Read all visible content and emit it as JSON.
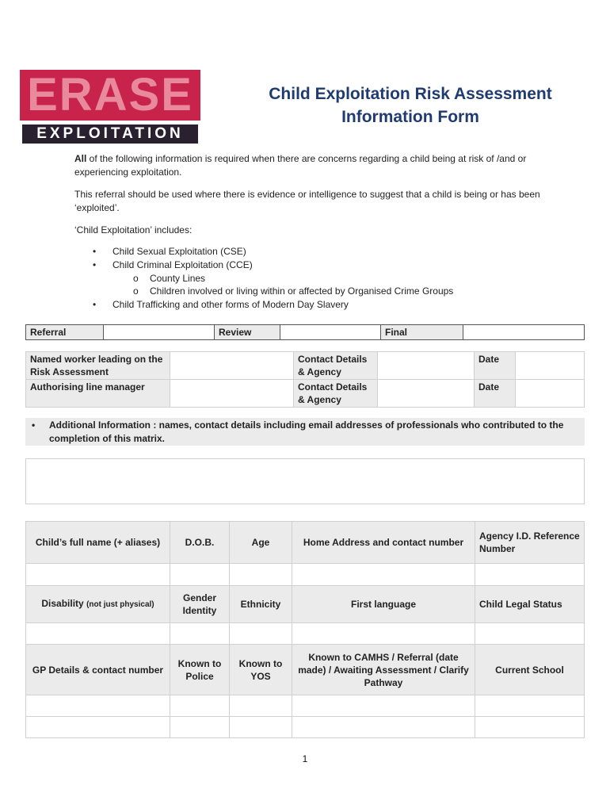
{
  "logo": {
    "line1": "ERASE",
    "line2": "EXPLOITATION"
  },
  "title": "Child Exploitation Risk Assessment Information Form",
  "intro": {
    "p1_bold": "All",
    "p1_rest": " of the following information is required when there are concerns regarding a child being at risk of /and or experiencing exploitation.",
    "p2": "This referral should be used where there is evidence or intelligence to suggest that a child is being or has been ‘exploited’.",
    "p3": "‘Child Exploitation’ includes:",
    "bullets": [
      "Child Sexual Exploitation (CSE)",
      "Child Criminal Exploitation (CCE)",
      "County Lines",
      "Children involved or living within or affected by Organised Crime Groups",
      "Child Trafficking and other forms of Modern Day Slavery"
    ]
  },
  "stage": {
    "referral": "Referral",
    "review": "Review",
    "final": "Final"
  },
  "workers": {
    "named": "Named worker leading on the Risk Assessment",
    "manager": "Authorising line manager",
    "contact": "Contact Details & Agency",
    "date": "Date"
  },
  "additional": "Additional Information : names, contact details including email addresses of professionals who contributed to the completion of this matrix.",
  "child": {
    "row1": [
      "Child’s full name (+ aliases)",
      "D.O.B.",
      "Age",
      "Home Address and contact number",
      "Agency I.D. Reference Number"
    ],
    "row2_disability": "Disability",
    "row2_disability_note": "(not just physical)",
    "row2": [
      "Gender Identity",
      "Ethnicity",
      "First language",
      "Child Legal Status"
    ],
    "row3": [
      "GP Details & contact number",
      "Known to Police",
      "Known to YOS",
      "Known to CAMHS / Referral (date made) / Awaiting Assessment / Clarify Pathway",
      "Current School"
    ]
  },
  "page_number": "1"
}
